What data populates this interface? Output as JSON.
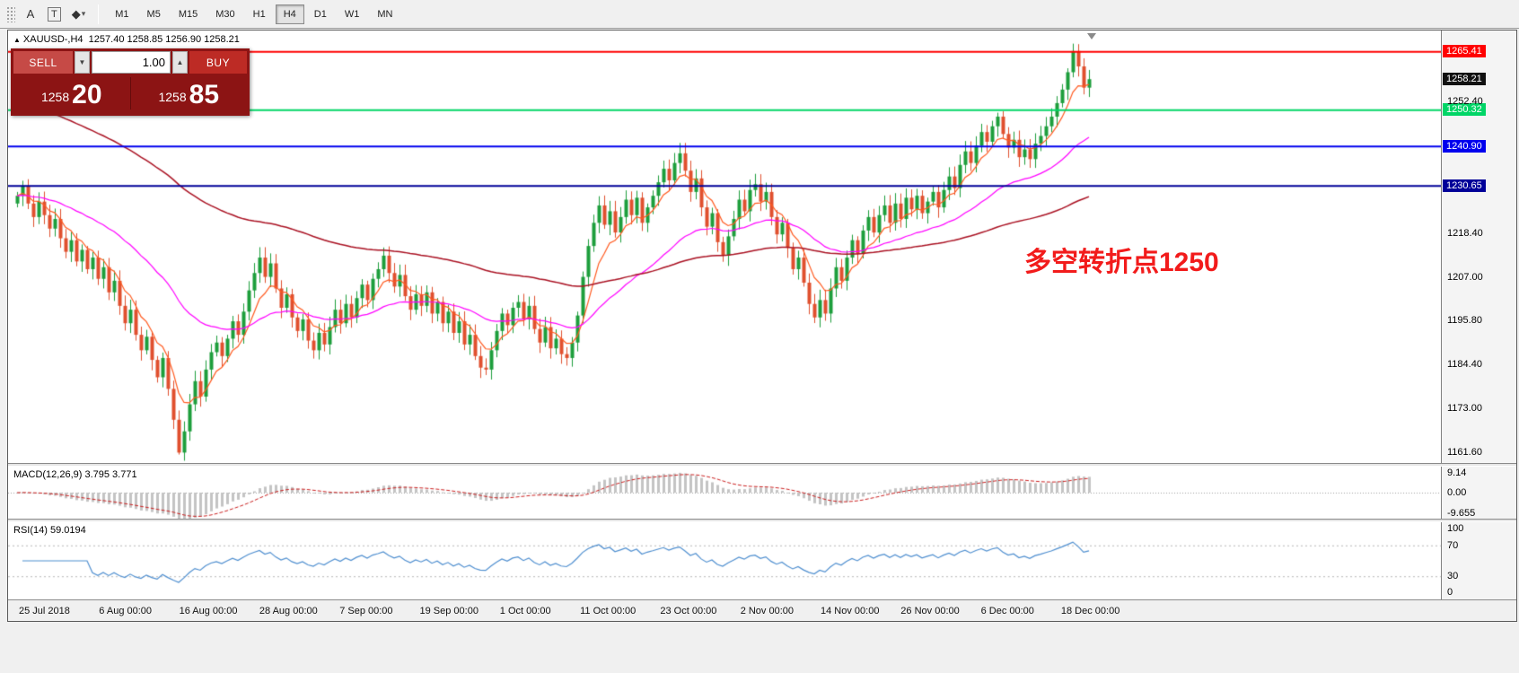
{
  "toolbar": {
    "tools": [
      {
        "name": "text-label-tool",
        "glyph": "A"
      },
      {
        "name": "text-box-tool",
        "glyph": "T"
      },
      {
        "name": "objects-tool",
        "glyph": "◆"
      },
      {
        "name": "objects-dropdown",
        "glyph": "▾"
      }
    ],
    "timeframes": [
      "M1",
      "M5",
      "M15",
      "M30",
      "H1",
      "H4",
      "D1",
      "W1",
      "MN"
    ],
    "active_timeframe": "H4"
  },
  "chart": {
    "symbol_line": {
      "collapse_icon": "▲",
      "title": "XAUUSD-,H4",
      "quote": "1257.40 1258.85 1256.90 1258.21"
    },
    "trade_panel": {
      "sell_label": "SELL",
      "buy_label": "BUY",
      "volume": "1.00",
      "spinner_down": "▼",
      "spinner_up": "▲",
      "bid_base": "1258",
      "bid_pips": "20",
      "ask_base": "1258",
      "ask_pips": "85",
      "panel_bg": "#8c1414",
      "sell_bg": "#c64a46",
      "buy_bg": "#bd2b25"
    },
    "annotation": {
      "text": "多空转折点1250",
      "color": "#f21b1b"
    }
  },
  "axis": {
    "badges": [
      {
        "label": "1265.41",
        "price": 1265.41,
        "bg": "#ff0000",
        "fg": "#ffffff",
        "line": "#ff0000",
        "lw": 2
      },
      {
        "label": "1258.21",
        "price": 1258.21,
        "bg": "#111111",
        "fg": "#ffffff",
        "line": null,
        "lw": 0
      },
      {
        "label": "1250.32",
        "price": 1250.32,
        "bg": "#00d566",
        "fg": "#ffffff",
        "line": "#00d566",
        "lw": 2
      },
      {
        "label": "1240.90",
        "price": 1240.9,
        "bg": "#0000ee",
        "fg": "#ffffff",
        "line": "#0000ee",
        "lw": 2
      },
      {
        "label": "1230.65",
        "price": 1230.65,
        "bg": "#000099",
        "fg": "#ffffff",
        "line": "#000099",
        "lw": 2
      }
    ],
    "ticks": [
      {
        "label": "1252.40",
        "price": 1252.4
      },
      {
        "label": "1218.40",
        "price": 1218.4
      },
      {
        "label": "1207.00",
        "price": 1207.0
      },
      {
        "label": "1195.80",
        "price": 1195.8
      },
      {
        "label": "1184.40",
        "price": 1184.4
      },
      {
        "label": "1173.00",
        "price": 1173.0
      },
      {
        "label": "1161.60",
        "price": 1161.6
      }
    ]
  },
  "x_labels": [
    "25 Jul 2018",
    "6 Aug 00:00",
    "16 Aug 00:00",
    "28 Aug 00:00",
    "7 Sep 00:00",
    "19 Sep 00:00",
    "1 Oct 00:00",
    "11 Oct 00:00",
    "23 Oct 00:00",
    "2 Nov 00:00",
    "14 Nov 00:00",
    "26 Nov 00:00",
    "6 Dec 00:00",
    "18 Dec 00:00"
  ],
  "macd": {
    "label": "MACD(12,26,9) 3.795 3.771",
    "ticks": [
      {
        "label": "9.14",
        "value": 9.14
      },
      {
        "label": "0.00",
        "value": 0
      },
      {
        "label": "-9.655",
        "value": -9.655
      }
    ],
    "range": 12,
    "histogram_color": "#c4c4c4",
    "signal_color": "#cc2222"
  },
  "rsi": {
    "label": "RSI(14) 59.0194",
    "ticks": [
      {
        "label": "100",
        "value": 100
      },
      {
        "label": "70",
        "value": 70
      },
      {
        "label": "30",
        "value": 30
      },
      {
        "label": "0",
        "value": 0
      }
    ],
    "levels": [
      70,
      30
    ],
    "line_color": "#4f8fd0"
  },
  "chart_data": {
    "type": "candlestick",
    "symbol": "XAUUSD-",
    "timeframe": "H4",
    "current_quote": {
      "open": 1257.4,
      "high": 1258.85,
      "low": 1256.9,
      "close": 1258.21
    },
    "y_range": [
      1158.8,
      1270.8
    ],
    "up_color": "#1d9e3c",
    "down_color": "#e0502e",
    "overlays": [
      {
        "name": "ma-fast",
        "type": "ema",
        "period": 7,
        "color": "#ff5a1f"
      },
      {
        "name": "ma-medium",
        "type": "ema",
        "period": 34,
        "color": "#ff00ff"
      },
      {
        "name": "ma-slow",
        "type": "ema",
        "period": 110,
        "seed": 1253,
        "color": "#aa1122"
      }
    ],
    "closes": [
      1228.0,
      1230.5,
      1226.0,
      1222.5,
      1226.5,
      1223.0,
      1219.5,
      1222.0,
      1217.0,
      1213.5,
      1216.5,
      1211.0,
      1214.0,
      1209.0,
      1212.0,
      1206.5,
      1209.5,
      1203.0,
      1206.0,
      1199.5,
      1195.0,
      1198.5,
      1192.0,
      1188.0,
      1191.5,
      1185.5,
      1181.0,
      1186.0,
      1178.0,
      1170.0,
      1161.5,
      1167.0,
      1174.0,
      1180.0,
      1176.0,
      1183.0,
      1187.5,
      1190.0,
      1186.5,
      1191.0,
      1195.5,
      1192.0,
      1198.0,
      1203.5,
      1208.0,
      1212.0,
      1207.0,
      1210.5,
      1204.0,
      1199.0,
      1202.5,
      1196.5,
      1193.0,
      1196.0,
      1190.5,
      1188.0,
      1192.5,
      1189.5,
      1194.0,
      1198.5,
      1195.0,
      1200.0,
      1196.5,
      1201.5,
      1205.0,
      1201.0,
      1206.5,
      1209.0,
      1212.5,
      1208.0,
      1204.5,
      1207.5,
      1202.0,
      1198.5,
      1202.5,
      1199.5,
      1203.0,
      1197.5,
      1200.5,
      1195.0,
      1198.0,
      1192.5,
      1195.5,
      1189.5,
      1192.0,
      1186.5,
      1183.5,
      1183.0,
      1188.0,
      1193.0,
      1197.5,
      1194.5,
      1199.0,
      1200.5,
      1196.0,
      1199.5,
      1193.5,
      1190.0,
      1194.0,
      1188.5,
      1191.0,
      1187.0,
      1186.0,
      1190.0,
      1197.0,
      1207.0,
      1215.0,
      1221.0,
      1225.5,
      1220.5,
      1224.0,
      1218.5,
      1222.5,
      1227.0,
      1223.0,
      1227.5,
      1221.0,
      1225.0,
      1228.0,
      1231.5,
      1235.0,
      1232.0,
      1236.5,
      1239.0,
      1234.5,
      1229.0,
      1232.5,
      1225.0,
      1220.0,
      1223.5,
      1216.0,
      1212.5,
      1217.5,
      1222.0,
      1227.0,
      1224.0,
      1229.5,
      1231.0,
      1226.5,
      1229.0,
      1222.5,
      1218.0,
      1221.0,
      1214.5,
      1209.0,
      1212.0,
      1205.5,
      1200.0,
      1196.5,
      1201.0,
      1197.5,
      1204.0,
      1209.5,
      1206.0,
      1212.0,
      1216.5,
      1213.0,
      1219.0,
      1222.5,
      1218.5,
      1223.0,
      1225.5,
      1221.0,
      1226.0,
      1222.0,
      1227.5,
      1224.5,
      1228.0,
      1223.5,
      1226.5,
      1229.0,
      1225.0,
      1229.5,
      1233.0,
      1230.0,
      1236.0,
      1239.5,
      1236.5,
      1241.0,
      1244.5,
      1242.0,
      1246.0,
      1248.5,
      1244.0,
      1240.5,
      1242.5,
      1238.0,
      1240.0,
      1237.5,
      1241.5,
      1243.5,
      1246.0,
      1248.5,
      1252.0,
      1255.5,
      1260.0,
      1265.5,
      1261.5,
      1256.0,
      1258.2
    ]
  }
}
